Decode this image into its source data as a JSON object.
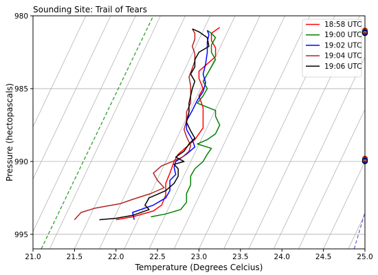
{
  "chart_data": {
    "type": "line",
    "title": "Sounding Site: Trail of Tears",
    "xlabel": "Temperature (Degrees Celcius)",
    "ylabel": "Pressure (hectopascals)",
    "xlim": [
      21.0,
      25.0
    ],
    "ylim": [
      996,
      980
    ],
    "y_inverted": true,
    "grid": true,
    "legend_position": "top-right",
    "xticks": [
      21.0,
      21.5,
      22.0,
      22.5,
      23.0,
      23.5,
      24.0,
      24.5,
      25.0
    ],
    "xtick_labels": [
      "21.0",
      "21.5",
      "22.0",
      "22.5",
      "23.0",
      "23.5",
      "24.0",
      "24.5",
      "25.0"
    ],
    "yticks": [
      980,
      985,
      990,
      995
    ],
    "ytick_labels": [
      "980",
      "985",
      "990",
      "995"
    ],
    "series": [
      {
        "name": "18:58 UTC",
        "color": "#ff0000",
        "points": [
          [
            22.0,
            994.0
          ],
          [
            22.2,
            993.8
          ],
          [
            22.45,
            993.4
          ],
          [
            22.55,
            993.0
          ],
          [
            22.6,
            992.3
          ],
          [
            22.6,
            991.5
          ],
          [
            22.65,
            990.8
          ],
          [
            22.7,
            990.0
          ],
          [
            22.75,
            989.5
          ],
          [
            22.85,
            989.0
          ],
          [
            22.95,
            988.5
          ],
          [
            23.05,
            987.7
          ],
          [
            23.05,
            987.0
          ],
          [
            23.05,
            986.3
          ],
          [
            23.0,
            985.5
          ],
          [
            23.05,
            985.0
          ],
          [
            23.0,
            984.3
          ],
          [
            23.0,
            983.8
          ],
          [
            23.1,
            983.3
          ],
          [
            23.2,
            982.8
          ],
          [
            23.2,
            982.2
          ],
          [
            23.15,
            981.7
          ],
          [
            23.15,
            981.2
          ],
          [
            23.2,
            981.0
          ],
          [
            23.25,
            980.8
          ]
        ]
      },
      {
        "name": "19:00 UTC",
        "color": "#008000",
        "points": [
          [
            22.42,
            993.8
          ],
          [
            22.6,
            993.6
          ],
          [
            22.78,
            993.3
          ],
          [
            22.85,
            992.8
          ],
          [
            22.85,
            992.2
          ],
          [
            22.9,
            991.6
          ],
          [
            22.9,
            991.0
          ],
          [
            22.95,
            990.5
          ],
          [
            23.05,
            990.0
          ],
          [
            23.1,
            989.5
          ],
          [
            23.15,
            989.1
          ],
          [
            22.98,
            988.8
          ],
          [
            23.1,
            988.5
          ],
          [
            23.2,
            988.1
          ],
          [
            23.25,
            987.5
          ],
          [
            23.2,
            986.9
          ],
          [
            23.2,
            986.5
          ],
          [
            22.98,
            986.0
          ],
          [
            23.05,
            985.5
          ],
          [
            23.1,
            985.0
          ],
          [
            23.05,
            984.5
          ],
          [
            23.1,
            984.0
          ],
          [
            23.15,
            983.5
          ],
          [
            23.2,
            983.0
          ],
          [
            23.15,
            982.5
          ],
          [
            23.15,
            982.0
          ],
          [
            23.2,
            981.5
          ],
          [
            23.15,
            981.2
          ],
          [
            23.1,
            981.0
          ]
        ]
      },
      {
        "name": "19:02 UTC",
        "color": "#0000ff",
        "points": [
          [
            22.22,
            994.0
          ],
          [
            22.2,
            993.5
          ],
          [
            22.45,
            993.0
          ],
          [
            22.6,
            992.5
          ],
          [
            22.65,
            992.0
          ],
          [
            22.65,
            991.3
          ],
          [
            22.72,
            990.9
          ],
          [
            22.7,
            990.4
          ],
          [
            22.72,
            990.0
          ],
          [
            22.85,
            989.5
          ],
          [
            22.95,
            989.0
          ],
          [
            22.92,
            988.5
          ],
          [
            22.85,
            987.8
          ],
          [
            22.85,
            987.2
          ],
          [
            22.92,
            986.5
          ],
          [
            22.98,
            985.8
          ],
          [
            23.05,
            985.2
          ],
          [
            23.08,
            984.6
          ],
          [
            23.05,
            984.0
          ],
          [
            23.08,
            983.3
          ],
          [
            23.1,
            982.5
          ],
          [
            23.1,
            981.8
          ],
          [
            23.12,
            981.3
          ],
          [
            23.1,
            981.0
          ]
        ]
      },
      {
        "name": "19:04 UTC",
        "color": "#b22222",
        "points": [
          [
            21.5,
            994.0
          ],
          [
            21.58,
            993.5
          ],
          [
            21.75,
            993.2
          ],
          [
            22.05,
            992.9
          ],
          [
            22.2,
            992.6
          ],
          [
            22.42,
            992.2
          ],
          [
            22.58,
            991.8
          ],
          [
            22.5,
            991.3
          ],
          [
            22.45,
            990.8
          ],
          [
            22.55,
            990.3
          ],
          [
            22.68,
            990.0
          ],
          [
            22.8,
            989.7
          ],
          [
            22.88,
            989.3
          ],
          [
            22.9,
            988.9
          ],
          [
            22.85,
            988.3
          ],
          [
            22.82,
            987.8
          ],
          [
            22.85,
            987.2
          ],
          [
            22.85,
            986.6
          ],
          [
            22.9,
            986.0
          ],
          [
            22.9,
            985.4
          ],
          [
            22.9,
            984.8
          ],
          [
            22.88,
            984.2
          ],
          [
            22.92,
            983.6
          ],
          [
            22.95,
            983.1
          ],
          [
            22.95,
            982.6
          ],
          [
            22.92,
            982.1
          ],
          [
            22.95,
            981.6
          ],
          [
            22.95,
            981.2
          ],
          [
            22.92,
            980.9
          ]
        ]
      },
      {
        "name": "19:06 UTC",
        "color": "#000000",
        "points": [
          [
            21.8,
            994.0
          ],
          [
            22.0,
            993.9
          ],
          [
            22.2,
            993.7
          ],
          [
            22.4,
            993.3
          ],
          [
            22.35,
            993.0
          ],
          [
            22.4,
            992.5
          ],
          [
            22.6,
            992.0
          ],
          [
            22.7,
            991.5
          ],
          [
            22.75,
            991.0
          ],
          [
            22.75,
            990.5
          ],
          [
            22.7,
            990.2
          ],
          [
            22.82,
            990.0
          ],
          [
            22.72,
            989.7
          ],
          [
            22.82,
            989.3
          ],
          [
            22.88,
            988.8
          ],
          [
            22.95,
            988.4
          ],
          [
            22.9,
            987.9
          ],
          [
            22.85,
            987.3
          ],
          [
            22.88,
            986.6
          ],
          [
            22.88,
            986.0
          ],
          [
            22.9,
            985.5
          ],
          [
            22.92,
            985.0
          ],
          [
            22.95,
            984.5
          ],
          [
            22.9,
            984.0
          ],
          [
            22.95,
            983.5
          ],
          [
            22.95,
            983.0
          ],
          [
            23.0,
            982.5
          ],
          [
            23.12,
            982.1
          ],
          [
            23.1,
            981.5
          ],
          [
            23.0,
            981.1
          ],
          [
            22.92,
            980.9
          ]
        ]
      }
    ],
    "reference_lines": [
      {
        "color": "#2ca02c",
        "style": "dashed",
        "from": [
          21.1,
          996.0
        ],
        "to": [
          22.45,
          980.0
        ]
      },
      {
        "color": "#6666dd",
        "style": "dashed",
        "from": [
          24.87,
          996.0
        ],
        "to": [
          25.0,
          993.5
        ]
      }
    ],
    "gray_isotherm_slope_c_per_hpa": 0.0835,
    "gray_isotherm_x_at_996": [
      20.3,
      20.6,
      20.9,
      21.2,
      21.5,
      21.8,
      22.1,
      22.4,
      22.7,
      23.0,
      23.3,
      23.6,
      23.9,
      24.2,
      24.5,
      24.8
    ],
    "edge_markers": [
      {
        "x": 25.0,
        "y": 981.1,
        "colors": [
          "#ff0000",
          "#008000",
          "#0000ff",
          "#000000"
        ]
      },
      {
        "x": 25.0,
        "y": 989.9,
        "colors": [
          "#ff0000",
          "#008000",
          "#0000ff",
          "#000000"
        ]
      }
    ]
  }
}
